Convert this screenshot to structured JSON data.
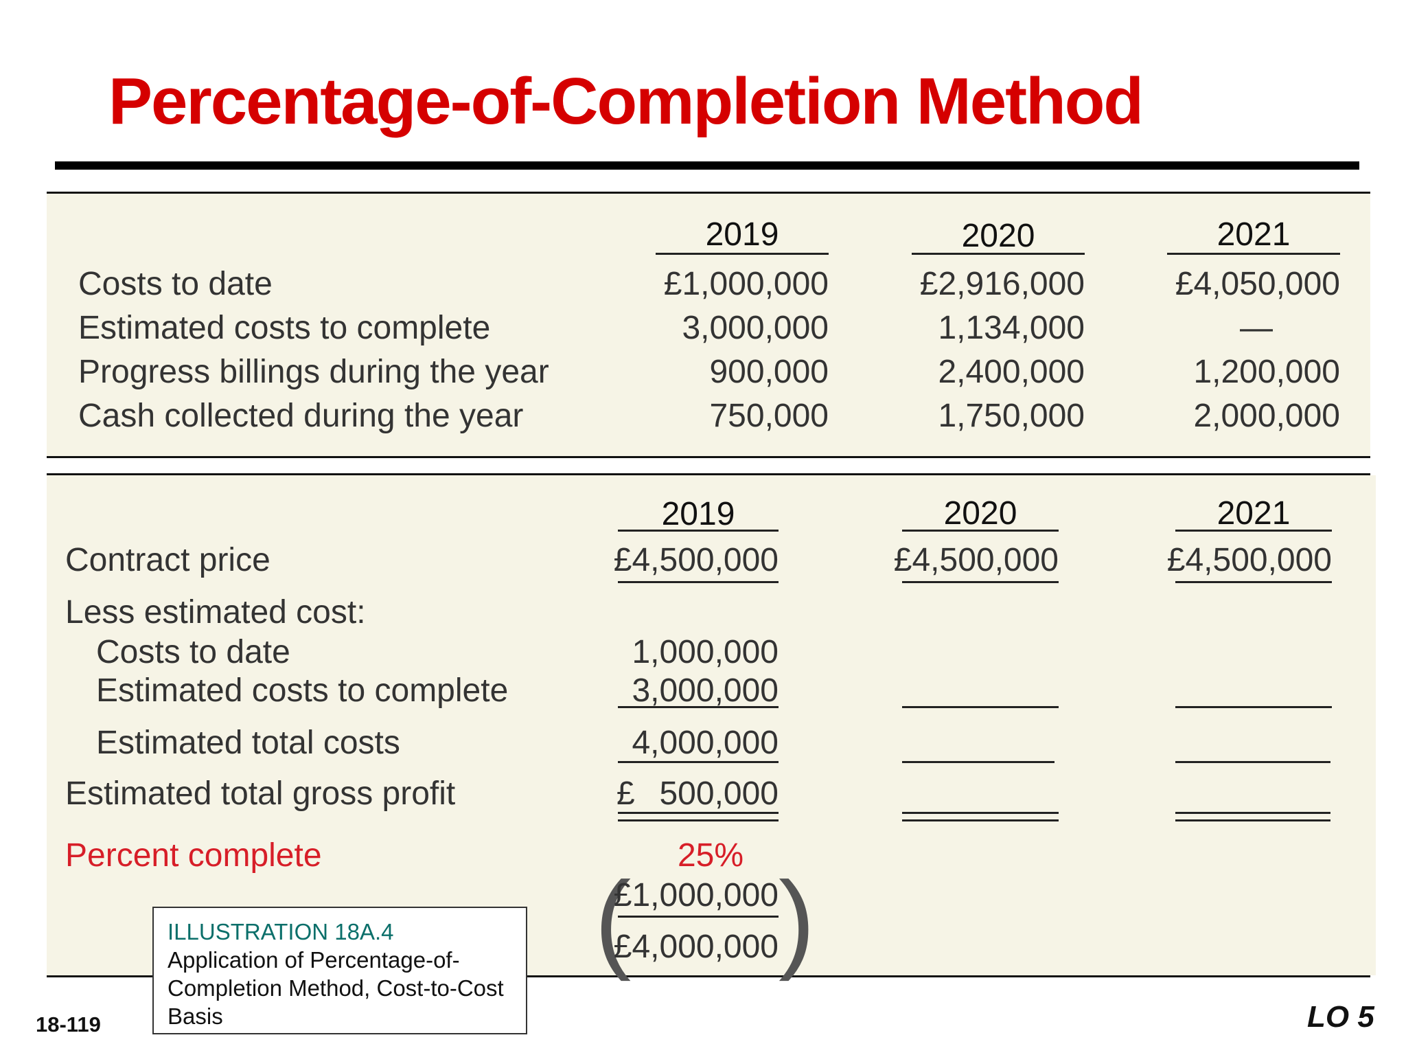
{
  "title": "Percentage-of-Completion Method",
  "table1": {
    "years": [
      "2019",
      "2020",
      "2021"
    ],
    "rows": [
      {
        "label": "Costs to date",
        "values": [
          "£1,000,000",
          "£2,916,000",
          "£4,050,000"
        ]
      },
      {
        "label": "Estimated costs to complete",
        "values": [
          "3,000,000",
          "1,134,000",
          "—"
        ]
      },
      {
        "label": "Progress billings during the year",
        "values": [
          "900,000",
          "2,400,000",
          "1,200,000"
        ]
      },
      {
        "label": "Cash collected during the year",
        "values": [
          "750,000",
          "1,750,000",
          "2,000,000"
        ]
      }
    ]
  },
  "table2": {
    "years": [
      "2019",
      "2020",
      "2021"
    ],
    "contract_price_label": "Contract price",
    "contract_price": [
      "£4,500,000",
      "£4,500,000",
      "£4,500,000"
    ],
    "less_label": "Less estimated cost:",
    "costs_to_date_label": "Costs to date",
    "costs_to_date": "1,000,000",
    "est_to_complete_label": "Estimated costs to complete",
    "est_to_complete": "3,000,000",
    "est_total_costs_label": "Estimated total costs",
    "est_total_costs": "4,000,000",
    "gross_profit_label": "Estimated total gross profit",
    "gross_profit_currency": "£",
    "gross_profit": "500,000",
    "percent_label": "Percent complete",
    "percent": "25%",
    "fraction_numerator": "£1,000,000",
    "fraction_denominator": "£4,000,000"
  },
  "illustration": {
    "title": "ILLUSTRATION 18A.4",
    "caption": "Application of Percentage-of-Completion Method, Cost-to-Cost Basis"
  },
  "page_number": "18-119",
  "learning_objective": "LO 5"
}
